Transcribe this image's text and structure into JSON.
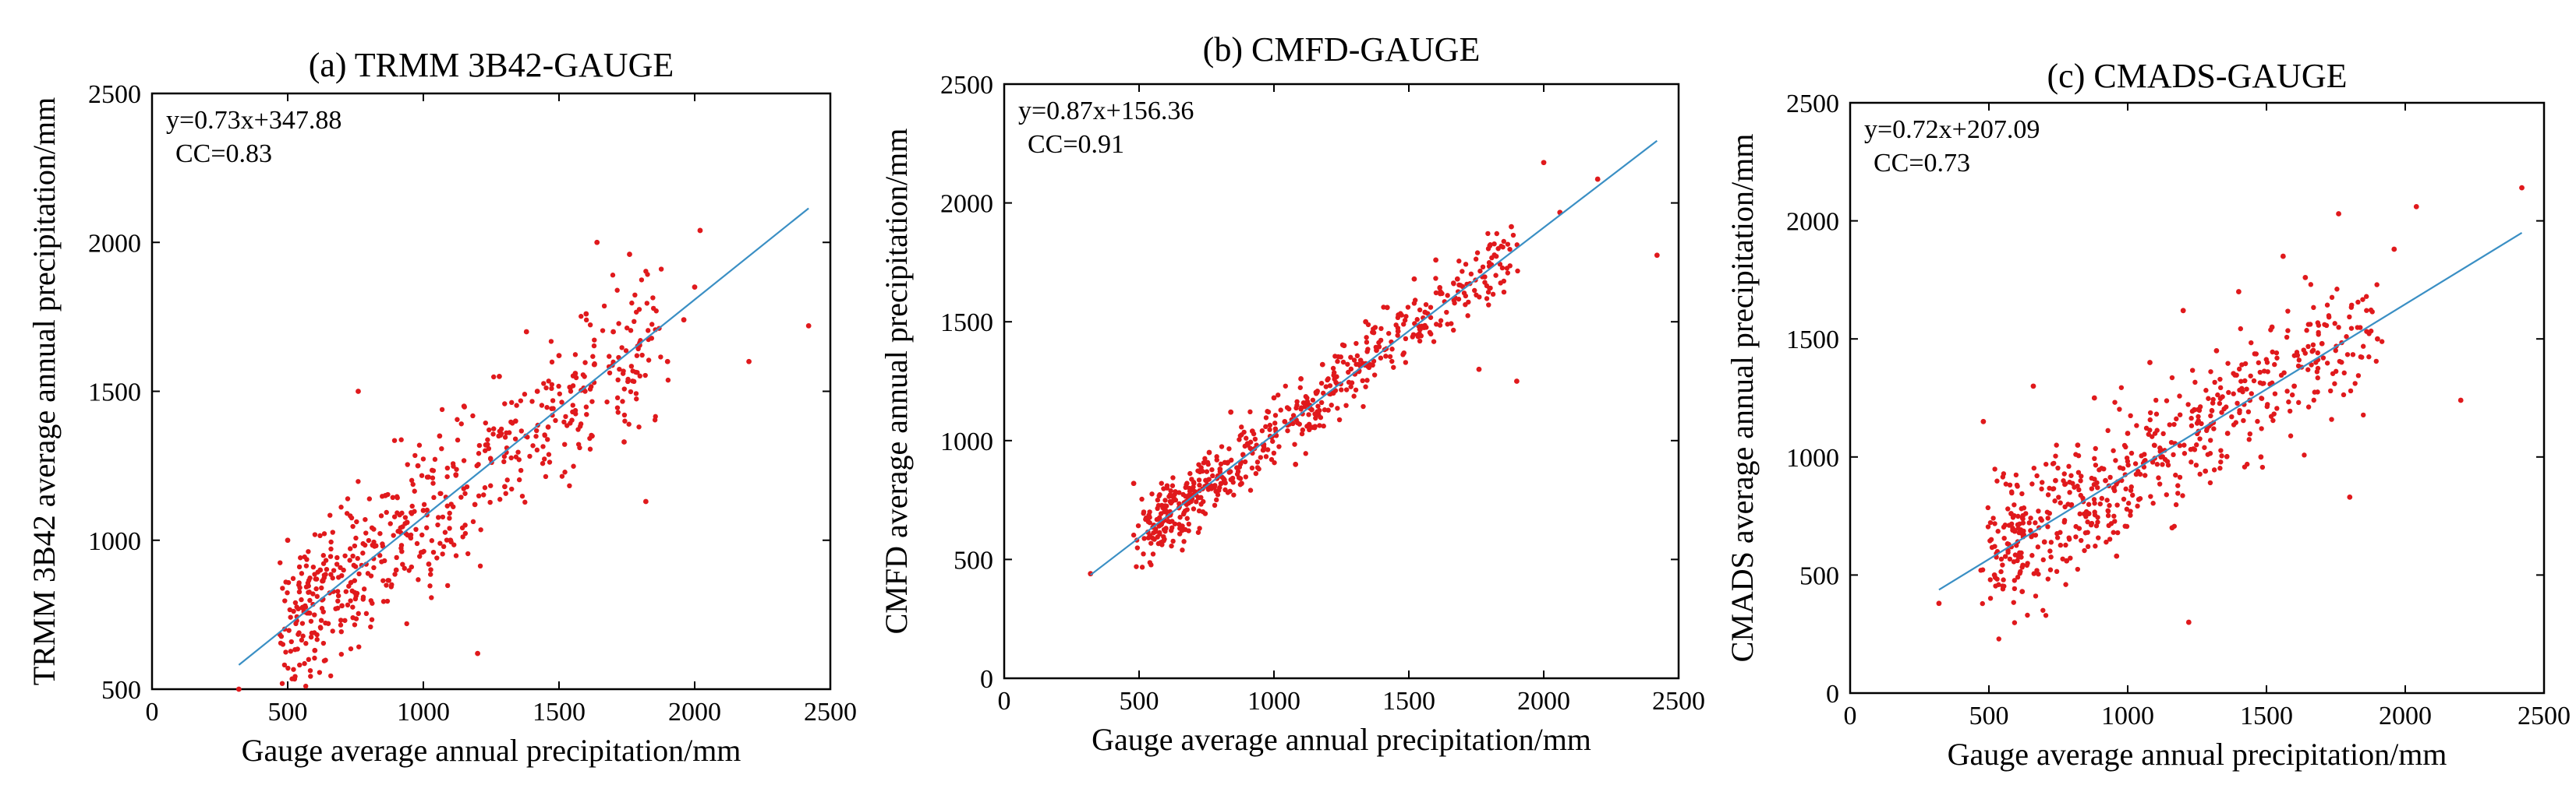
{
  "chart_data": [
    {
      "type": "scatter",
      "title": "(a) TRMM 3B42-GAUGE",
      "xlabel": "Gauge average annual precipitation/mm",
      "ylabel": "TRMM 3B42 average annual precipitation/mm",
      "xlim": [
        0,
        2500
      ],
      "ylim": [
        500,
        2500
      ],
      "xticks": [
        "0",
        "500",
        "1000",
        "1500",
        "2000",
        "2500"
      ],
      "yticks": [
        "500",
        "1000",
        "1500",
        "2000",
        "2500"
      ],
      "grid": false,
      "equation": "y=0.73x+347.88",
      "cc": "CC=0.83",
      "fit": {
        "slope": 0.73,
        "intercept": 347.88,
        "x_range": [
          320,
          2420
        ]
      },
      "point_color": "#e0191c",
      "line_color": "#3a8fc4",
      "points": [
        [
          320,
          500
        ],
        [
          500,
          1000
        ],
        [
          560,
          760
        ],
        [
          600,
          630
        ],
        [
          620,
          900
        ],
        [
          700,
          780
        ],
        [
          760,
          1500
        ],
        [
          820,
          980
        ],
        [
          860,
          1150
        ],
        [
          900,
          900
        ],
        [
          940,
          1060
        ],
        [
          980,
          1250
        ],
        [
          1000,
          1100
        ],
        [
          1020,
          920
        ],
        [
          1060,
          1350
        ],
        [
          1100,
          1000
        ],
        [
          1120,
          1220
        ],
        [
          1150,
          1450
        ],
        [
          1190,
          1120
        ],
        [
          1200,
          620
        ],
        [
          1230,
          1320
        ],
        [
          1280,
          1550
        ],
        [
          1300,
          1180
        ],
        [
          1340,
          1400
        ],
        [
          1380,
          1700
        ],
        [
          1420,
          1500
        ],
        [
          1460,
          1380
        ],
        [
          1500,
          1620
        ],
        [
          1560,
          1560
        ],
        [
          1600,
          1760
        ],
        [
          1640,
          2000
        ],
        [
          1700,
          1700
        ],
        [
          1740,
          1330
        ],
        [
          1760,
          1960
        ],
        [
          1820,
          1130
        ],
        [
          1900,
          1600
        ],
        [
          1960,
          1740
        ],
        [
          2000,
          1850
        ],
        [
          2020,
          2040
        ],
        [
          2200,
          1600
        ],
        [
          2420,
          1720
        ]
      ]
    },
    {
      "type": "scatter",
      "title": "(b) CMFD-GAUGE",
      "xlabel": "Gauge average annual precipitation/mm",
      "ylabel": "CMFD average annual precipitation/mm",
      "xlim": [
        0,
        2500
      ],
      "ylim": [
        0,
        2500
      ],
      "xticks": [
        "0",
        "500",
        "1000",
        "1500",
        "2000",
        "2500"
      ],
      "yticks": [
        "0",
        "500",
        "1000",
        "1500",
        "2000",
        "2500"
      ],
      "grid": false,
      "equation": "y=0.87x+156.36",
      "cc": "CC=0.91",
      "fit": {
        "slope": 0.87,
        "intercept": 156.36,
        "x_range": [
          320,
          2420
        ]
      },
      "point_color": "#e0191c",
      "line_color": "#3a8fc4",
      "points": [
        [
          320,
          440
        ],
        [
          480,
          820
        ],
        [
          540,
          600
        ],
        [
          600,
          700
        ],
        [
          660,
          640
        ],
        [
          720,
          760
        ],
        [
          760,
          950
        ],
        [
          800,
          880
        ],
        [
          840,
          1120
        ],
        [
          880,
          820
        ],
        [
          920,
          1040
        ],
        [
          960,
          960
        ],
        [
          1000,
          1180
        ],
        [
          1040,
          1080
        ],
        [
          1080,
          900
        ],
        [
          1100,
          1260
        ],
        [
          1140,
          1130
        ],
        [
          1180,
          1320
        ],
        [
          1220,
          1200
        ],
        [
          1260,
          1400
        ],
        [
          1300,
          1280
        ],
        [
          1340,
          1500
        ],
        [
          1380,
          1380
        ],
        [
          1420,
          1560
        ],
        [
          1460,
          1460
        ],
        [
          1520,
          1680
        ],
        [
          1560,
          1540
        ],
        [
          1600,
          1760
        ],
        [
          1680,
          1680
        ],
        [
          1760,
          1300
        ],
        [
          1800,
          1820
        ],
        [
          1880,
          1900
        ],
        [
          1900,
          1250
        ],
        [
          2000,
          2170
        ],
        [
          2060,
          1960
        ],
        [
          2200,
          2100
        ],
        [
          2420,
          1780
        ]
      ]
    },
    {
      "type": "scatter",
      "title": "(c) CMADS-GAUGE",
      "xlabel": "Gauge average annual precipitation/mm",
      "ylabel": "CMADS average annual precipitation/mm",
      "xlim": [
        0,
        2500
      ],
      "ylim": [
        0,
        2500
      ],
      "xticks": [
        "0",
        "500",
        "1000",
        "1500",
        "2000",
        "2500"
      ],
      "yticks": [
        "0",
        "500",
        "1000",
        "1500",
        "2000",
        "2500"
      ],
      "grid": false,
      "equation": "y=0.72x+207.09",
      "cc": "CC=0.73",
      "fit": {
        "slope": 0.72,
        "intercept": 207.09,
        "x_range": [
          320,
          2420
        ]
      },
      "point_color": "#e0191c",
      "line_color": "#3a8fc4",
      "points": [
        [
          320,
          380
        ],
        [
          480,
          1150
        ],
        [
          520,
          500
        ],
        [
          580,
          760
        ],
        [
          620,
          430
        ],
        [
          660,
          1300
        ],
        [
          700,
          640
        ],
        [
          740,
          900
        ],
        [
          780,
          560
        ],
        [
          820,
          1050
        ],
        [
          860,
          760
        ],
        [
          880,
          1250
        ],
        [
          920,
          900
        ],
        [
          960,
          580
        ],
        [
          1000,
          1100
        ],
        [
          1040,
          820
        ],
        [
          1080,
          1400
        ],
        [
          1120,
          1000
        ],
        [
          1160,
          700
        ],
        [
          1200,
          1620
        ],
        [
          1220,
          300
        ],
        [
          1240,
          1200
        ],
        [
          1280,
          940
        ],
        [
          1320,
          1450
        ],
        [
          1360,
          1100
        ],
        [
          1400,
          1700
        ],
        [
          1440,
          1240
        ],
        [
          1480,
          1000
        ],
        [
          1520,
          1550
        ],
        [
          1560,
          1850
        ],
        [
          1600,
          1300
        ],
        [
          1640,
          1760
        ],
        [
          1700,
          1480
        ],
        [
          1760,
          2030
        ],
        [
          1800,
          830
        ],
        [
          1900,
          1500
        ],
        [
          1960,
          1880
        ],
        [
          2040,
          2060
        ],
        [
          2200,
          1240
        ],
        [
          2420,
          2140
        ]
      ]
    }
  ]
}
